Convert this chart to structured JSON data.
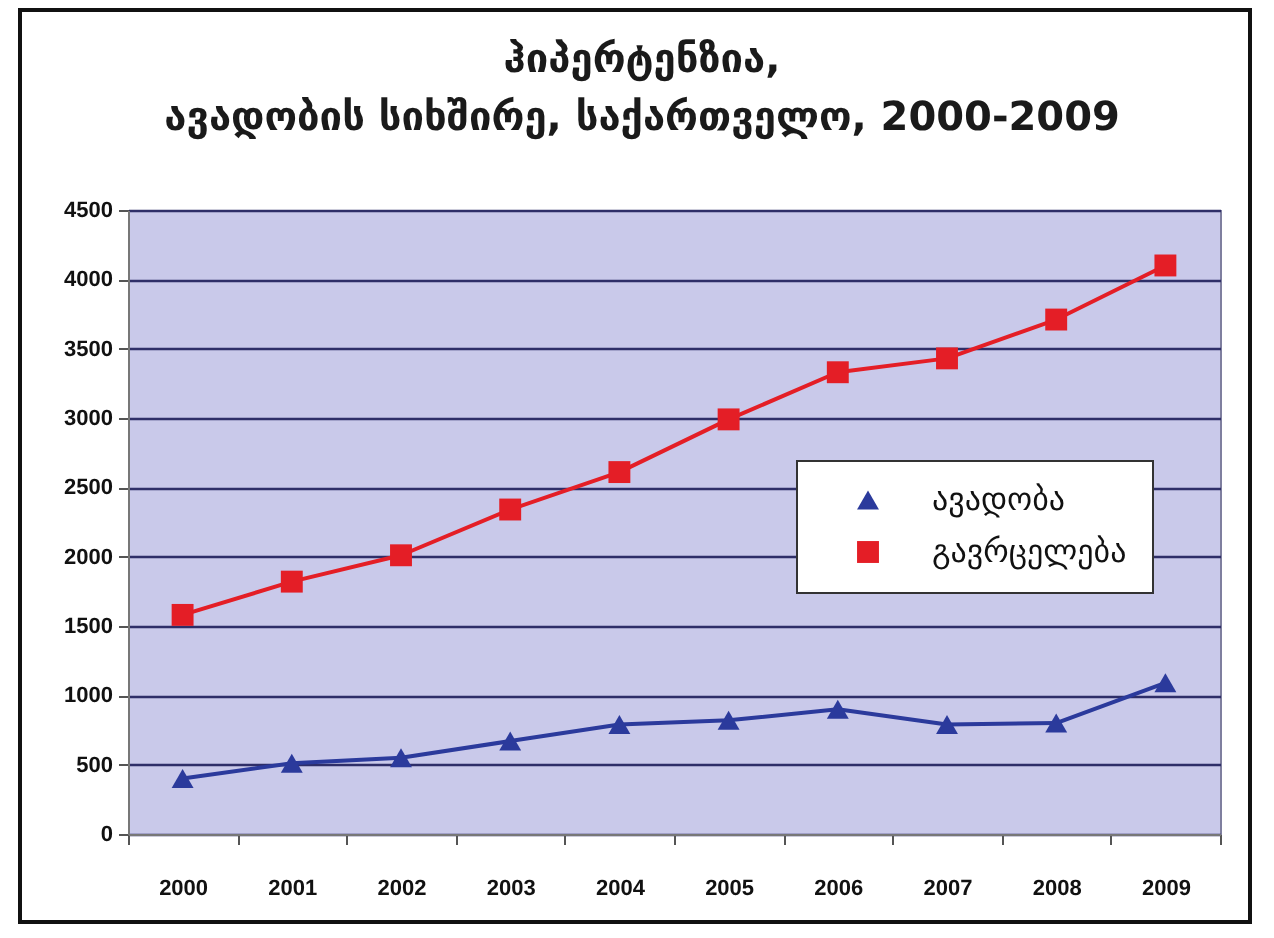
{
  "chart_data": {
    "type": "line",
    "title": "ჰიპერტენზია,\nავადობის სიხშირე, საქართველო, 2000-2009",
    "categories": [
      "2000",
      "2001",
      "2002",
      "2003",
      "2004",
      "2005",
      "2006",
      "2007",
      "2008",
      "2009"
    ],
    "series": [
      {
        "name": "ავადობა",
        "color": "#2b3a9c",
        "marker": "triangle",
        "values": [
          400,
          510,
          550,
          670,
          790,
          820,
          900,
          790,
          800,
          1090
        ]
      },
      {
        "name": "გავრცელება",
        "color": "#e41e26",
        "marker": "square",
        "values": [
          1580,
          1820,
          2010,
          2340,
          2610,
          2990,
          3330,
          3430,
          3710,
          4100
        ]
      }
    ],
    "ylim": [
      0,
      4500
    ],
    "yticks": [
      0,
      500,
      1000,
      1500,
      2000,
      2500,
      3000,
      3500,
      4000,
      4500
    ],
    "grid": "y",
    "legend": "right"
  }
}
